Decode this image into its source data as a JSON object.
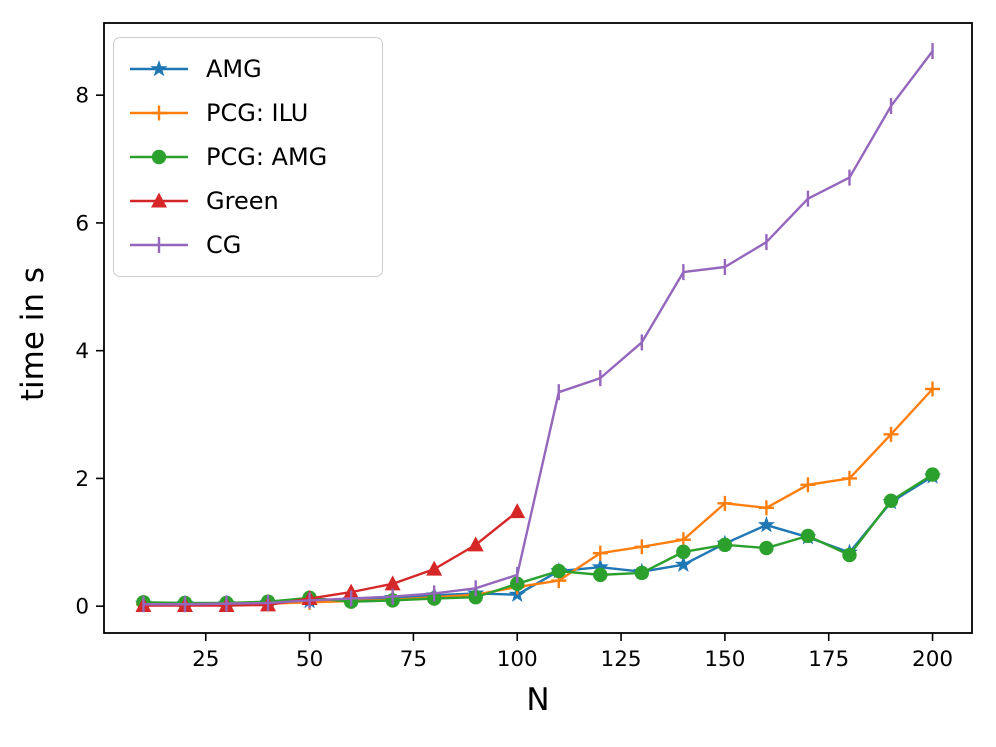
{
  "chart_data": {
    "type": "line",
    "title": "",
    "xlabel": "N",
    "ylabel": "time in s",
    "xlim": [
      0.5,
      209.5
    ],
    "ylim": [
      -0.42,
      9.13
    ],
    "x_ticks": [
      25,
      50,
      75,
      100,
      125,
      150,
      175,
      200
    ],
    "y_ticks": [
      0,
      2,
      4,
      6,
      8
    ],
    "grid": false,
    "legend_position": "upper left",
    "series": [
      {
        "name": "AMG",
        "color": "#1f77b4",
        "marker": "star",
        "x": [
          10,
          20,
          30,
          40,
          50,
          60,
          70,
          80,
          90,
          100,
          110,
          120,
          130,
          140,
          150,
          160,
          170,
          180,
          190,
          200
        ],
        "values": [
          0.04,
          0.04,
          0.04,
          0.05,
          0.08,
          0.1,
          0.13,
          0.17,
          0.2,
          0.18,
          0.55,
          0.61,
          0.54,
          0.65,
          0.98,
          1.27,
          1.08,
          0.84,
          1.63,
          2.03
        ]
      },
      {
        "name": "PCG: ILU",
        "color": "#ff7f0e",
        "marker": "plus",
        "x": [
          10,
          20,
          30,
          40,
          50,
          60,
          70,
          80,
          90,
          100,
          110,
          120,
          130,
          140,
          150,
          160,
          170,
          180,
          190,
          200
        ],
        "values": [
          0.03,
          0.03,
          0.03,
          0.04,
          0.06,
          0.08,
          0.1,
          0.14,
          0.18,
          0.3,
          0.4,
          0.83,
          0.93,
          1.04,
          1.61,
          1.54,
          1.9,
          2.0,
          2.69,
          3.4
        ]
      },
      {
        "name": "PCG: AMG",
        "color": "#2ca02c",
        "marker": "circle",
        "x": [
          10,
          20,
          30,
          40,
          50,
          60,
          70,
          80,
          90,
          100,
          110,
          120,
          130,
          140,
          150,
          160,
          170,
          180,
          190,
          200
        ],
        "values": [
          0.06,
          0.05,
          0.05,
          0.07,
          0.13,
          0.07,
          0.09,
          0.12,
          0.14,
          0.35,
          0.55,
          0.49,
          0.52,
          0.85,
          0.96,
          0.91,
          1.1,
          0.8,
          1.65,
          2.06
        ]
      },
      {
        "name": "Green",
        "color": "#d62728",
        "marker": "triangle",
        "x": [
          10,
          20,
          30,
          40,
          50,
          60,
          70,
          80,
          90,
          100
        ],
        "values": [
          0.01,
          0.01,
          0.01,
          0.02,
          0.12,
          0.22,
          0.35,
          0.58,
          0.96,
          1.48
        ]
      },
      {
        "name": "CG",
        "color": "#9467bd",
        "marker": "vline",
        "x": [
          10,
          20,
          30,
          40,
          50,
          60,
          70,
          80,
          90,
          100,
          110,
          120,
          130,
          140,
          150,
          160,
          170,
          180,
          190,
          200
        ],
        "values": [
          0.03,
          0.03,
          0.04,
          0.05,
          0.09,
          0.12,
          0.15,
          0.2,
          0.28,
          0.49,
          3.35,
          3.57,
          4.13,
          5.23,
          5.31,
          5.7,
          6.38,
          6.71,
          7.83,
          8.69
        ]
      }
    ]
  }
}
